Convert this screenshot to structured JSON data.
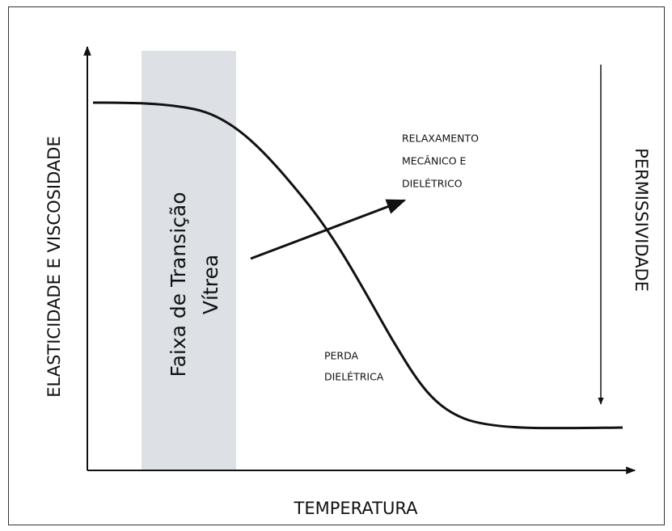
{
  "diagram": {
    "y_axis_label": "ELASTICIDADE E VISCOSIDADE",
    "x_axis_label": "TEMPERATURA",
    "right_axis_label": "PERMISSIVIDADE",
    "band_label": [
      "Faixa de Transição",
      "Vítrea"
    ],
    "relaxation_label": [
      "RELAXAMENTO",
      "MECÂNICO E",
      "DIELÉTRICO"
    ],
    "loss_label": [
      "PERDA",
      "DIELÉTRICA"
    ]
  }
}
